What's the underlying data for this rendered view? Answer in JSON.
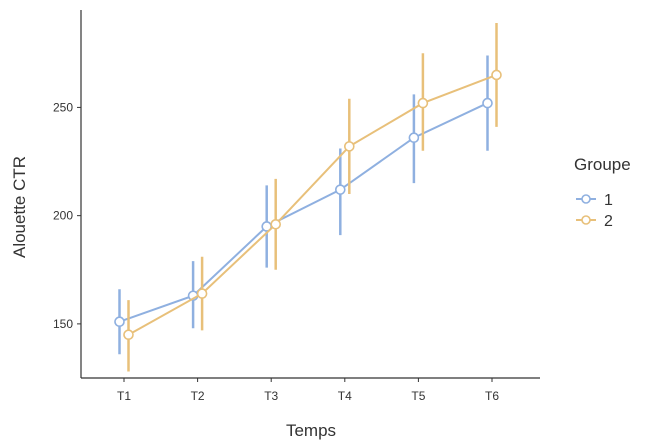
{
  "chart_data": {
    "type": "line",
    "title": "",
    "xlabel": "Temps",
    "ylabel": "Alouette CTR",
    "categories": [
      "T1",
      "T2",
      "T3",
      "T4",
      "T5",
      "T6"
    ],
    "ylim": [
      125,
      295
    ],
    "yticks": [
      150,
      200,
      250
    ],
    "grid": false,
    "error_bars": true,
    "legend": {
      "title": "Groupe",
      "placement": "right"
    },
    "series": [
      {
        "name": "1",
        "color": "#8fb0e0",
        "values": [
          151,
          163,
          195,
          212,
          236,
          252
        ],
        "lower": [
          136,
          148,
          176,
          191,
          215,
          230
        ],
        "upper": [
          166,
          179,
          214,
          231,
          256,
          274
        ]
      },
      {
        "name": "2",
        "color": "#e8c07a",
        "values": [
          145,
          164,
          196,
          232,
          252,
          265
        ],
        "lower": [
          128,
          147,
          175,
          210,
          230,
          241
        ],
        "upper": [
          161,
          181,
          217,
          254,
          275,
          289
        ]
      }
    ]
  }
}
